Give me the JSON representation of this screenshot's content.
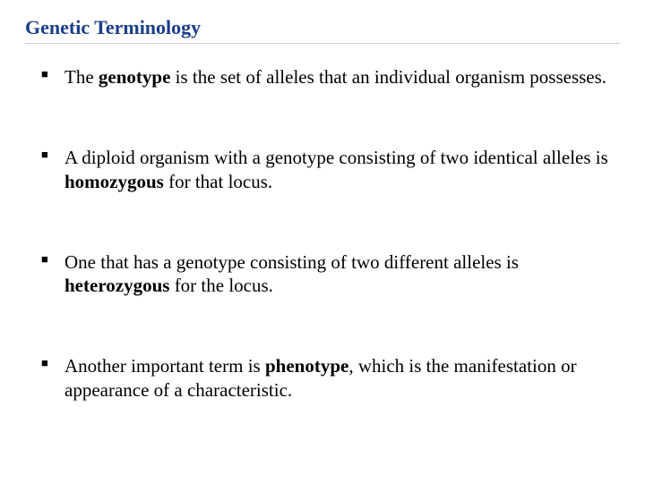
{
  "title": "Genetic Terminology",
  "title_color": "#1a3e8b",
  "text_color": "#000000",
  "background_color": "#ffffff",
  "font_family": "Times New Roman",
  "title_fontsize": 22,
  "body_fontsize": 21,
  "bullets": [
    {
      "segments": [
        {
          "text": "The ",
          "bold": false
        },
        {
          "text": "genotype",
          "bold": true
        },
        {
          "text": " is the set of alleles that an individual organism possesses.",
          "bold": false
        }
      ]
    },
    {
      "segments": [
        {
          "text": " A diploid organism with a genotype consisting of two identical alleles is ",
          "bold": false
        },
        {
          "text": "homozygous",
          "bold": true
        },
        {
          "text": " for that locus.",
          "bold": false
        }
      ]
    },
    {
      "segments": [
        {
          "text": " One that has a genotype consisting of two different alleles is ",
          "bold": false
        },
        {
          "text": "heterozygous",
          "bold": true
        },
        {
          "text": " for the locus.",
          "bold": false
        }
      ]
    },
    {
      "segments": [
        {
          "text": "Another important term is ",
          "bold": false
        },
        {
          "text": "phenotype",
          "bold": true
        },
        {
          "text": ", which is the manifestation or appearance of a characteristic.",
          "bold": false
        }
      ]
    }
  ]
}
